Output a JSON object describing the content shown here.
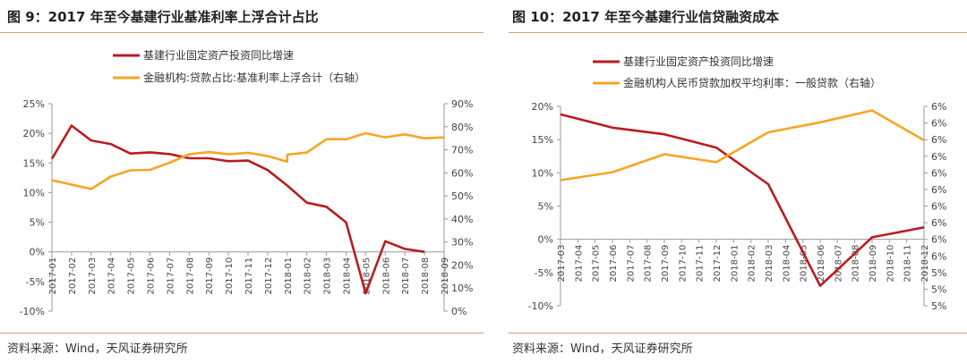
{
  "left": {
    "title": "图 9：2017 年至今基建行业基准利率上浮合计占比",
    "source": "资料来源：Wind，天风证券研究所"
  },
  "right": {
    "title": "图 10：2017 年至今基建行业信贷融资成本",
    "source": "资料来源：Wind，天风证券研究所"
  },
  "colors": {
    "red": "#b81c22",
    "orange": "#f5a623"
  },
  "chart_data": [
    {
      "type": "line",
      "title": "",
      "x_tick_labels": [
        "2017-01",
        "2017-02",
        "2017-03",
        "2017-04",
        "2017-05",
        "2017-06",
        "2017-07",
        "2017-08",
        "2017-09",
        "2017-10",
        "2017-11",
        "2017-12",
        "2018-01",
        "2018-02",
        "2018-03",
        "2018-04",
        "2018-05",
        "2018-06",
        "2018-07",
        "2018-08",
        "2018-09"
      ],
      "y_ticks_left": [
        "25%",
        "20%",
        "15%",
        "10%",
        "5%",
        "0%",
        "-5%",
        "-10%"
      ],
      "y_ticks_right": [
        "90%",
        "80%",
        "70%",
        "60%",
        "50%",
        "40%",
        "30%",
        "20%",
        "10%",
        "0%"
      ],
      "ylim_left": [
        -10,
        25
      ],
      "ylim_right": [
        0,
        90
      ],
      "legend_position": "top",
      "series": [
        {
          "name": "基建行业固定资产投资同比增速",
          "axis": "left",
          "color": "#b81c22",
          "x": [
            "2017-01",
            "2017-02",
            "2017-03",
            "2017-04",
            "2017-05",
            "2017-06",
            "2017-07",
            "2017-08",
            "2017-09",
            "2017-10",
            "2017-11",
            "2017-12",
            "2018-01",
            "2018-02",
            "2018-03",
            "2018-04",
            "2018-05",
            "2018-06",
            "2018-07",
            "2018-08",
            "2018-09"
          ],
          "values": [
            15.7,
            21.3,
            18.8,
            18.2,
            16.6,
            16.8,
            16.5,
            15.8,
            15.8,
            15.3,
            15.4,
            13.8,
            11.2,
            8.3,
            7.6,
            5.0,
            -7.0,
            1.8,
            0.5,
            0.0,
            null
          ]
        },
        {
          "name": "金融机构:贷款占比:基准利率上浮合计（右轴）",
          "axis": "right",
          "color": "#f5a623",
          "x": [
            "2017-01",
            "2017-03",
            "2017-04",
            "2017-05",
            "2017-06",
            "2017-07",
            "2017-08",
            "2017-09",
            "2017-10",
            "2017-11",
            "2017-12",
            "2018-01",
            "2018-01",
            "2018-02",
            "2018-03",
            "2018-04",
            "2018-05",
            "2018-06",
            "2018-07",
            "2018-08",
            "2018-09"
          ],
          "values": [
            56.8,
            53.0,
            58.4,
            61.1,
            61.3,
            64.4,
            68.1,
            69.0,
            68.1,
            68.7,
            67.3,
            64.9,
            67.9,
            68.8,
            74.6,
            74.6,
            77.2,
            75.4,
            76.7,
            75.0,
            75.4
          ]
        }
      ]
    },
    {
      "type": "line",
      "title": "",
      "x_tick_labels": [
        "2017-03",
        "2017-04",
        "2017-05",
        "2017-06",
        "2017-07",
        "2017-08",
        "2017-09",
        "2017-10",
        "2017-11",
        "2017-12",
        "2018-01",
        "2018-02",
        "2018-03",
        "2018-04",
        "2018-05",
        "2018-06",
        "2018-07",
        "2018-08",
        "2018-09",
        "2018-10",
        "2018-11",
        "2018-12"
      ],
      "y_ticks_left": [
        "20%",
        "15%",
        "10%",
        "5%",
        "0%",
        "-5%",
        "-10%"
      ],
      "y_ticks_right": [
        "6%",
        "6%",
        "6%",
        "6%",
        "6%",
        "6%",
        "6%",
        "6%",
        "6%",
        "6%",
        "5%",
        "5%",
        "5%"
      ],
      "ylim_left": [
        -10,
        20
      ],
      "ylim_right": [
        5.0,
        6.0
      ],
      "legend_position": "top",
      "series": [
        {
          "name": "基建行业固定资产投资同比增速",
          "axis": "left",
          "color": "#b81c22",
          "x": [
            "2017-03",
            "2017-06",
            "2017-09",
            "2017-12",
            "2018-03",
            "2018-06",
            "2018-09",
            "2018-12"
          ],
          "values": [
            18.8,
            16.8,
            15.8,
            13.8,
            8.3,
            -7.0,
            0.3,
            1.8
          ]
        },
        {
          "name": "金融机构人民币贷款加权平均利率：一般贷款（右轴）",
          "axis": "right",
          "color": "#f5a623",
          "x": [
            "2017-03",
            "2017-06",
            "2017-09",
            "2017-12",
            "2018-03",
            "2018-06",
            "2018-09",
            "2018-12"
          ],
          "values": [
            5.63,
            5.67,
            5.76,
            5.72,
            5.87,
            5.92,
            5.98,
            5.83
          ]
        }
      ]
    }
  ]
}
